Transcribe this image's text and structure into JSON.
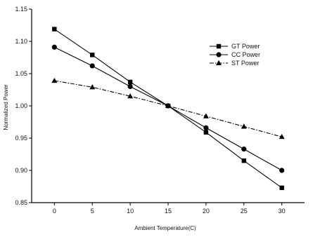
{
  "chart_data": {
    "type": "line",
    "x": [
      0,
      5,
      10,
      15,
      20,
      25,
      30
    ],
    "xlabel": "Ambient Temperature(C)",
    "ylabel": "Normalized Power",
    "xlim": [
      -3,
      33
    ],
    "ylim": [
      0.85,
      1.15
    ],
    "x_ticks": [
      "0",
      "5",
      "10",
      "15",
      "20",
      "25",
      "30"
    ],
    "y_ticks": [
      "0.85",
      "0.90",
      "0.95",
      "1.00",
      "1.05",
      "1.10",
      "1.15"
    ],
    "y_tick_values": [
      0.85,
      0.9,
      0.95,
      1.0,
      1.05,
      1.1,
      1.15
    ],
    "grid": false,
    "legend_position": "top-right",
    "series": [
      {
        "name": "GT Power",
        "marker": "square",
        "line": "solid",
        "values": [
          1.119,
          1.079,
          1.037,
          1.0,
          0.959,
          0.915,
          0.873
        ]
      },
      {
        "name": "CC Power",
        "marker": "circle",
        "line": "solid",
        "values": [
          1.091,
          1.062,
          1.03,
          1.0,
          0.966,
          0.933,
          0.9
        ]
      },
      {
        "name": "ST Power",
        "marker": "triangle",
        "line": "dashdot",
        "values": [
          1.039,
          1.029,
          1.015,
          1.0,
          0.984,
          0.968,
          0.952
        ]
      }
    ]
  }
}
